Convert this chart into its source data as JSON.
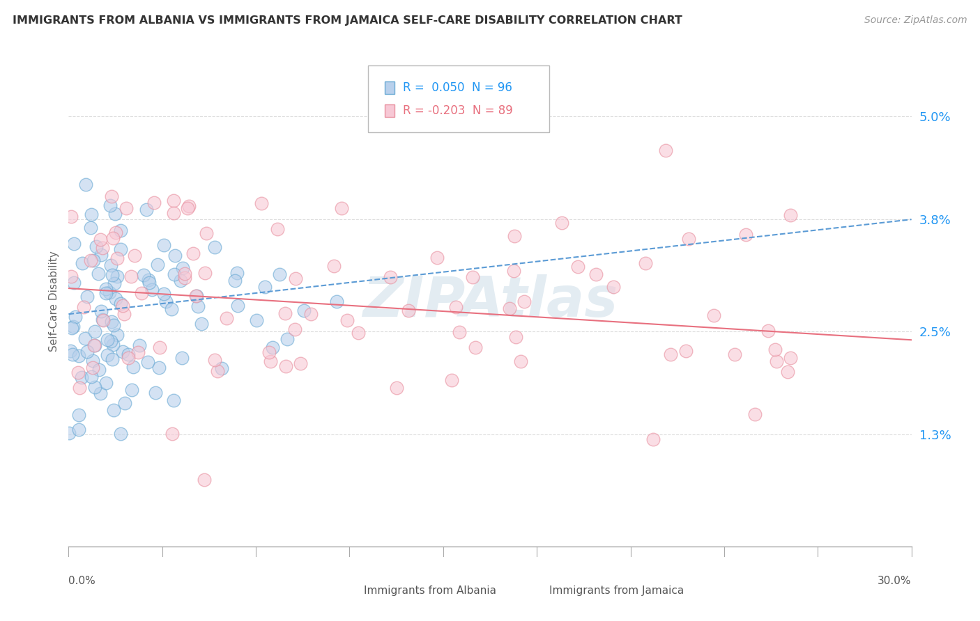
{
  "title": "IMMIGRANTS FROM ALBANIA VS IMMIGRANTS FROM JAMAICA SELF-CARE DISABILITY CORRELATION CHART",
  "source": "Source: ZipAtlas.com",
  "ylabel": "Self-Care Disability",
  "ytick_labels": [
    "1.3%",
    "2.5%",
    "3.8%",
    "5.0%"
  ],
  "ytick_values": [
    0.013,
    0.025,
    0.038,
    0.05
  ],
  "xmin": 0.0,
  "xmax": 0.3,
  "ymin": 0.0,
  "ymax": 0.057,
  "albania_R": 0.05,
  "albania_N": 96,
  "jamaica_R": -0.203,
  "jamaica_N": 89,
  "albania_color": "#b8d0ec",
  "albania_edge_color": "#6aaad4",
  "albania_line_color": "#5b9bd5",
  "jamaica_color": "#f7c8d5",
  "jamaica_edge_color": "#e8909f",
  "jamaica_line_color": "#e8707f",
  "watermark": "ZIPAtlas",
  "watermark_color": "#ccdde8",
  "legend_blue_color": "#2196f3",
  "legend_pink_color": "#e8707f",
  "background_color": "#ffffff",
  "grid_color": "#dddddd"
}
